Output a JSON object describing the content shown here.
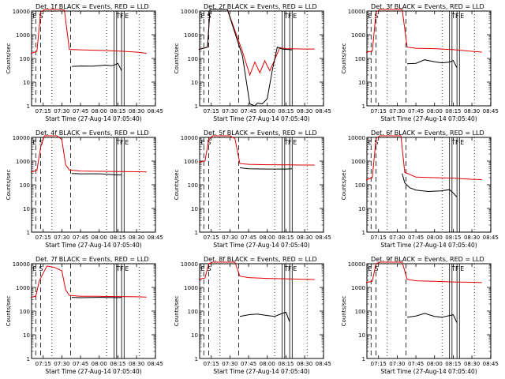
{
  "chart_data": [
    {
      "type": "line",
      "title": "Det. 1f BLACK = Events, RED = LLD",
      "ylabel": "Counts/sec",
      "xlabel": "Start Time (27-Aug-14 07:05:40)",
      "x_ticks": [
        "07:15",
        "07:30",
        "07:45",
        "08:00",
        "08:15",
        "08:30",
        "08:45"
      ],
      "y_ticks": [
        "1",
        "10",
        "100",
        "1000",
        "10000"
      ],
      "yscale": "log",
      "ylim": [
        1,
        10000
      ],
      "markers": [
        "E",
        "S",
        "T",
        "F",
        "E"
      ],
      "series": [
        {
          "name": "Events",
          "color": "#000000",
          "x": [
            "07:38",
            "07:45",
            "07:55",
            "08:05",
            "08:10",
            "08:13",
            "08:15",
            "08:18"
          ],
          "values": [
            46,
            48,
            47,
            52,
            49,
            55,
            62,
            30
          ]
        },
        {
          "name": "LLD",
          "color": "#dd0000",
          "x": [
            "07:05",
            "07:10",
            "07:13",
            "07:16",
            "07:28",
            "07:32",
            "07:36",
            "07:45",
            "08:00",
            "08:15",
            "08:30",
            "08:38"
          ],
          "values": [
            160,
            200,
            9000,
            12000,
            12000,
            11000,
            240,
            230,
            220,
            205,
            185,
            165
          ]
        }
      ]
    },
    {
      "type": "line",
      "title": "Det. 2f BLACK = Events, RED = LLD",
      "ylabel": "Counts/sec",
      "xlabel": "Start Time (27-Aug-14 07:05:40)",
      "x_ticks": [
        "07:15",
        "07:30",
        "07:45",
        "08:00",
        "08:15",
        "08:30",
        "08:45"
      ],
      "y_ticks": [
        "1",
        "10",
        "100",
        "1000",
        "10000"
      ],
      "yscale": "log",
      "ylim": [
        1,
        10000
      ],
      "markers": [
        "E",
        "S",
        "T",
        "F",
        "E"
      ],
      "series": [
        {
          "name": "Events",
          "color": "#000000",
          "x": [
            "07:05",
            "07:12",
            "07:14",
            "07:16",
            "07:28",
            "07:34",
            "07:40",
            "07:46",
            "07:50",
            "07:52",
            "07:56",
            "08:00",
            "08:04",
            "08:08",
            "08:12",
            "08:16",
            "08:20"
          ],
          "values": [
            240,
            300,
            12000,
            12000,
            12000,
            1200,
            130,
            1.2,
            1,
            1.3,
            1.2,
            2,
            30,
            300,
            250,
            240,
            230
          ]
        },
        {
          "name": "LLD",
          "color": "#dd0000",
          "x": [
            "07:05",
            "07:12",
            "07:14",
            "07:16",
            "07:28",
            "07:34",
            "07:40",
            "07:46",
            "07:50",
            "07:54",
            "07:58",
            "08:02",
            "08:06",
            "08:10",
            "08:15",
            "08:30",
            "08:38"
          ],
          "values": [
            240,
            300,
            12000,
            12000,
            12000,
            1500,
            200,
            20,
            70,
            25,
            80,
            30,
            90,
            280,
            260,
            250,
            250
          ]
        }
      ]
    },
    {
      "type": "line",
      "title": "Det. 3f BLACK = Events, RED = LLD",
      "ylabel": "Counts/sec",
      "xlabel": "Start Time (27-Aug-14 07:05:40)",
      "x_ticks": [
        "07:15",
        "07:30",
        "07:45",
        "08:00",
        "08:15",
        "08:30",
        "08:45"
      ],
      "y_ticks": [
        "1",
        "10",
        "100",
        "1000",
        "10000"
      ],
      "yscale": "log",
      "ylim": [
        1,
        10000
      ],
      "markers": [
        "E",
        "S",
        "T",
        "F",
        "E"
      ],
      "series": [
        {
          "name": "Events",
          "color": "#000000",
          "x": [
            "07:38",
            "07:45",
            "07:52",
            "08:00",
            "08:06",
            "08:12",
            "08:15",
            "08:18"
          ],
          "values": [
            60,
            62,
            88,
            72,
            65,
            70,
            82,
            40
          ]
        },
        {
          "name": "LLD",
          "color": "#dd0000",
          "x": [
            "07:05",
            "07:10",
            "07:13",
            "07:16",
            "07:30",
            "07:34",
            "07:38",
            "07:45",
            "08:00",
            "08:15",
            "08:30",
            "08:38"
          ],
          "values": [
            180,
            200,
            9000,
            12000,
            12000,
            12000,
            300,
            270,
            260,
            235,
            200,
            185
          ]
        }
      ]
    },
    {
      "type": "line",
      "title": "Det. 4f BLACK = Events, RED = LLD",
      "ylabel": "Counts/sec",
      "xlabel": "Start Time (27-Aug-14 07:05:40)",
      "x_ticks": [
        "07:15",
        "07:30",
        "07:45",
        "08:00",
        "08:15",
        "08:30",
        "08:45"
      ],
      "y_ticks": [
        "1",
        "10",
        "100",
        "1000",
        "10000"
      ],
      "yscale": "log",
      "ylim": [
        1,
        10000
      ],
      "markers": [
        "E",
        "S",
        "T",
        "F",
        "E"
      ],
      "series": [
        {
          "name": "Events",
          "color": "#000000",
          "x": [
            "07:38",
            "07:45",
            "08:00",
            "08:15",
            "08:18"
          ],
          "values": [
            300,
            290,
            290,
            260,
            260
          ]
        },
        {
          "name": "LLD",
          "color": "#dd0000",
          "x": [
            "07:05",
            "07:10",
            "07:13",
            "07:16",
            "07:26",
            "07:30",
            "07:33",
            "07:36",
            "07:45",
            "08:00",
            "08:15",
            "08:30",
            "08:38"
          ],
          "values": [
            340,
            400,
            4000,
            12000,
            12000,
            8000,
            700,
            420,
            380,
            370,
            360,
            355,
            350
          ]
        }
      ]
    },
    {
      "type": "line",
      "title": "Det. 5f BLACK = Events, RED = LLD",
      "ylabel": "Counts/sec",
      "xlabel": "Start Time (27-Aug-14 07:05:40)",
      "x_ticks": [
        "07:15",
        "07:30",
        "07:45",
        "08:00",
        "08:15",
        "08:30",
        "08:45"
      ],
      "y_ticks": [
        "1",
        "10",
        "100",
        "1000",
        "10000"
      ],
      "yscale": "log",
      "ylim": [
        1,
        10000
      ],
      "markers": [
        "E",
        "S",
        "T",
        "F",
        "E"
      ],
      "series": [
        {
          "name": "Events",
          "color": "#000000",
          "x": [
            "07:38",
            "07:45",
            "08:00",
            "08:15",
            "08:20"
          ],
          "values": [
            520,
            470,
            460,
            460,
            470
          ]
        },
        {
          "name": "LLD",
          "color": "#dd0000",
          "x": [
            "07:05",
            "07:10",
            "07:13",
            "07:16",
            "07:30",
            "07:34",
            "07:38",
            "07:45",
            "08:00",
            "08:15",
            "08:30",
            "08:38"
          ],
          "values": [
            900,
            1000,
            8000,
            12000,
            12000,
            9000,
            780,
            730,
            700,
            690,
            680,
            680
          ]
        }
      ]
    },
    {
      "type": "line",
      "title": "Det. 6f BLACK = Events, RED = LLD",
      "ylabel": "Counts/sec",
      "xlabel": "Start Time (27-Aug-14 07:05:40)",
      "x_ticks": [
        "07:15",
        "07:30",
        "07:45",
        "08:00",
        "08:15",
        "08:30",
        "08:45"
      ],
      "y_ticks": [
        "1",
        "10",
        "100",
        "1000",
        "10000"
      ],
      "yscale": "log",
      "ylim": [
        1,
        10000
      ],
      "markers": [
        "E",
        "S",
        "T",
        "F",
        "E"
      ],
      "series": [
        {
          "name": "Events",
          "color": "#000000",
          "x": [
            "07:34",
            "07:36",
            "07:40",
            "07:45",
            "07:55",
            "08:05",
            "08:12",
            "08:15",
            "08:18"
          ],
          "values": [
            300,
            120,
            75,
            60,
            52,
            55,
            62,
            45,
            30
          ]
        },
        {
          "name": "LLD",
          "color": "#dd0000",
          "x": [
            "07:05",
            "07:10",
            "07:13",
            "07:16",
            "07:30",
            "07:33",
            "07:36",
            "07:45",
            "08:00",
            "08:15",
            "08:30",
            "08:38"
          ],
          "values": [
            160,
            200,
            9000,
            12000,
            12000,
            12000,
            340,
            210,
            200,
            190,
            170,
            165
          ]
        }
      ]
    },
    {
      "type": "line",
      "title": "Det. 7f BLACK = Events, RED = LLD",
      "ylabel": "Counts/sec",
      "xlabel": "Start Time (27-Aug-14 07:05:40)",
      "x_ticks": [
        "07:15",
        "07:30",
        "07:45",
        "08:00",
        "08:15",
        "08:30",
        "08:45"
      ],
      "y_ticks": [
        "1",
        "10",
        "100",
        "1000",
        "10000"
      ],
      "yscale": "log",
      "ylim": [
        1,
        10000
      ],
      "markers": [
        "E",
        "S",
        "T",
        "F",
        "E"
      ],
      "series": [
        {
          "name": "Events",
          "color": "#000000",
          "x": [
            "07:38",
            "07:45",
            "08:00",
            "08:15",
            "08:18"
          ],
          "values": [
            380,
            370,
            380,
            370,
            380
          ]
        },
        {
          "name": "LLD",
          "color": "#dd0000",
          "x": [
            "07:05",
            "07:09",
            "07:12",
            "07:18",
            "07:24",
            "07:30",
            "07:33",
            "07:36",
            "07:45",
            "08:00",
            "08:15",
            "08:30",
            "08:38"
          ],
          "values": [
            380,
            420,
            2000,
            8000,
            7000,
            5000,
            800,
            460,
            420,
            420,
            410,
            400,
            390
          ]
        }
      ]
    },
    {
      "type": "line",
      "title": "Det. 8f BLACK = Events, RED = LLD",
      "ylabel": "Counts/sec",
      "xlabel": "Start Time (27-Aug-14 07:05:40)",
      "x_ticks": [
        "07:15",
        "07:30",
        "07:45",
        "08:00",
        "08:15",
        "08:30",
        "08:45"
      ],
      "y_ticks": [
        "1",
        "10",
        "100",
        "1000",
        "10000"
      ],
      "yscale": "log",
      "ylim": [
        1,
        10000
      ],
      "markers": [
        "E",
        "S",
        "T",
        "F",
        "E"
      ],
      "series": [
        {
          "name": "Events",
          "color": "#000000",
          "x": [
            "07:38",
            "07:45",
            "07:52",
            "08:00",
            "08:06",
            "08:12",
            "08:15",
            "08:18"
          ],
          "values": [
            60,
            70,
            75,
            65,
            60,
            80,
            90,
            35
          ]
        },
        {
          "name": "LLD",
          "color": "#dd0000",
          "x": [
            "07:05",
            "07:10",
            "07:13",
            "07:16",
            "07:30",
            "07:34",
            "07:38",
            "07:45",
            "08:00",
            "08:15",
            "08:30",
            "08:38"
          ],
          "values": [
            2200,
            2500,
            10000,
            12000,
            12000,
            12000,
            3000,
            2600,
            2400,
            2300,
            2200,
            2150
          ]
        }
      ]
    },
    {
      "type": "line",
      "title": "Det. 9f BLACK = Events, RED = LLD",
      "ylabel": "Counts/sec",
      "xlabel": "Start Time (27-Aug-14 07:05:40)",
      "x_ticks": [
        "07:15",
        "07:30",
        "07:45",
        "08:00",
        "08:15",
        "08:30",
        "08:45"
      ],
      "y_ticks": [
        "1",
        "10",
        "100",
        "1000",
        "10000"
      ],
      "yscale": "log",
      "ylim": [
        1,
        10000
      ],
      "markers": [
        "E",
        "S",
        "T",
        "F",
        "E"
      ],
      "series": [
        {
          "name": "Events",
          "color": "#000000",
          "x": [
            "07:38",
            "07:45",
            "07:52",
            "08:00",
            "08:06",
            "08:12",
            "08:15",
            "08:18"
          ],
          "values": [
            55,
            62,
            80,
            60,
            55,
            65,
            70,
            32
          ]
        },
        {
          "name": "LLD",
          "color": "#dd0000",
          "x": [
            "07:05",
            "07:10",
            "07:13",
            "07:16",
            "07:30",
            "07:34",
            "07:38",
            "07:45",
            "08:00",
            "08:15",
            "08:30",
            "08:38"
          ],
          "values": [
            1600,
            1800,
            10000,
            12000,
            12000,
            12000,
            2200,
            1900,
            1800,
            1700,
            1650,
            1600
          ]
        }
      ]
    }
  ]
}
